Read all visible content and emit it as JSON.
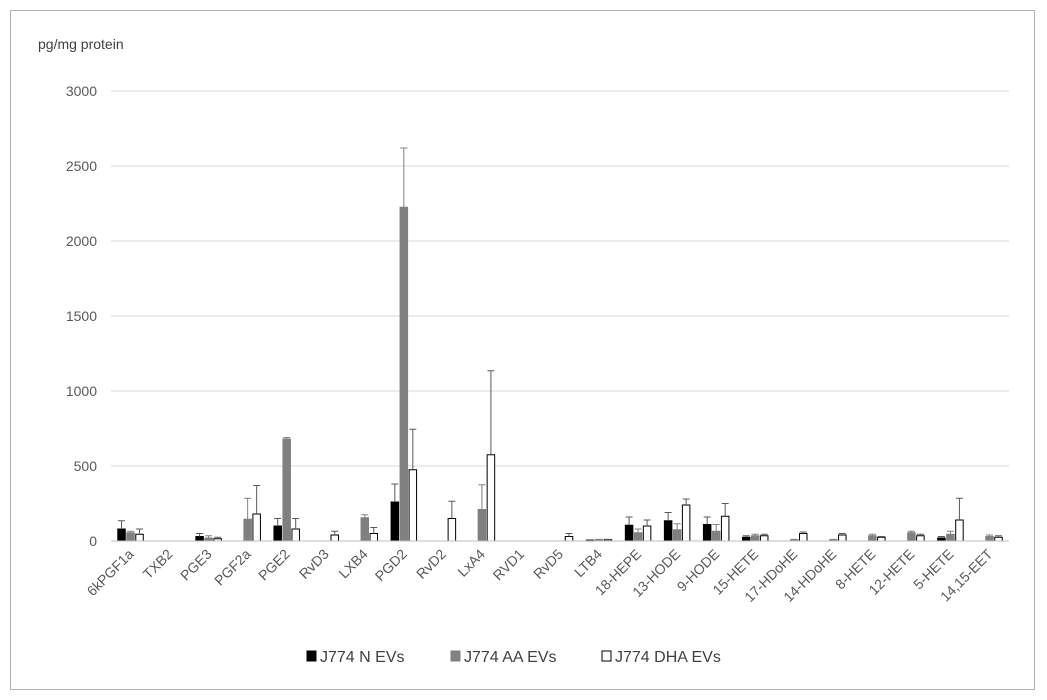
{
  "chart_data": {
    "type": "bar",
    "ylabel": "pg/mg protein",
    "ylim": [
      0,
      3000
    ],
    "yticks": [
      0,
      500,
      1000,
      1500,
      2000,
      2500,
      3000
    ],
    "grid": true,
    "legend_position": "bottom",
    "categories": [
      "6kPGF1a",
      "TXB2",
      "PGE3",
      "PGF2a",
      "PGE2",
      "RvD3",
      "LXB4",
      "PGD2",
      "RvD2",
      "LxA4",
      "RVD1",
      "RvD5",
      "LTB4",
      "18-HEPE",
      "13-HODE",
      "9-HODE",
      "15-HETE",
      "17-HDoHE",
      "14-HDoHE",
      "8-HETE",
      "12-HETE",
      "5-HETE",
      "14,15-EET"
    ],
    "series": [
      {
        "name": "J774 N EVs",
        "color": "#000000",
        "values": [
          80,
          0,
          30,
          0,
          100,
          0,
          0,
          260,
          0,
          0,
          0,
          0,
          5,
          105,
          135,
          110,
          25,
          0,
          0,
          0,
          0,
          20,
          0
        ],
        "errors": [
          55,
          0,
          20,
          0,
          50,
          0,
          0,
          120,
          0,
          0,
          0,
          0,
          3,
          55,
          55,
          50,
          10,
          0,
          0,
          0,
          0,
          10,
          0
        ]
      },
      {
        "name": "J774 AA EVs",
        "color": "#808080",
        "values": [
          55,
          0,
          20,
          145,
          680,
          0,
          155,
          2225,
          0,
          210,
          0,
          0,
          8,
          55,
          75,
          65,
          35,
          8,
          8,
          35,
          55,
          45,
          30
        ],
        "errors": [
          10,
          0,
          15,
          140,
          10,
          0,
          20,
          395,
          0,
          165,
          0,
          0,
          3,
          25,
          40,
          45,
          10,
          3,
          3,
          10,
          10,
          20,
          10
        ]
      },
      {
        "name": "J774 DHA EVs",
        "color": "#ffffff",
        "values": [
          45,
          0,
          15,
          180,
          80,
          40,
          50,
          475,
          150,
          575,
          0,
          30,
          8,
          100,
          240,
          165,
          35,
          50,
          40,
          25,
          35,
          140,
          25
        ],
        "errors": [
          35,
          0,
          10,
          190,
          70,
          25,
          40,
          270,
          115,
          560,
          0,
          20,
          3,
          40,
          40,
          85,
          10,
          10,
          10,
          5,
          10,
          145,
          10
        ]
      }
    ]
  }
}
